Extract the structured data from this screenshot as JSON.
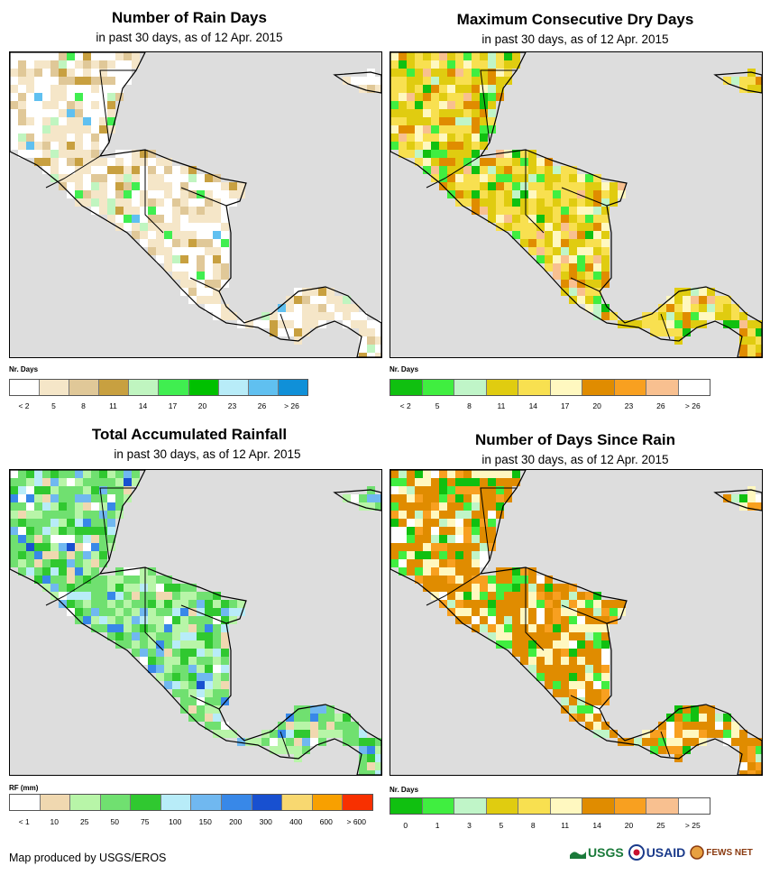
{
  "panels": [
    {
      "id": "rain-days",
      "title": "Number of Rain Days",
      "subtitle": "in past 30 days, as of 12 Apr. 2015",
      "map_theme": "rain-days",
      "legend": {
        "label": "Nr. Days",
        "colors": [
          "#ffffff",
          "#f5e6c8",
          "#e0c898",
          "#c8a040",
          "#c0f5c0",
          "#40ee50",
          "#00c000",
          "#b8ecf8",
          "#60c0f0",
          "#1090d8"
        ],
        "ticks": [
          "< 2",
          "5",
          "8",
          "11",
          "14",
          "17",
          "20",
          "23",
          "26",
          "> 26"
        ]
      }
    },
    {
      "id": "max-dry-days",
      "title": "Maximum Consecutive Dry Days",
      "subtitle": "in past 30 days, as of 12 Apr. 2015",
      "map_theme": "dry-days",
      "legend": {
        "label": "Nr. Days",
        "colors": [
          "#10c010",
          "#40ee40",
          "#c0f5c8",
          "#e0cc10",
          "#f8e050",
          "#fff8c0",
          "#e08c00",
          "#f8a020",
          "#f8c090",
          "#ffffff"
        ],
        "ticks": [
          "< 2",
          "5",
          "8",
          "11",
          "14",
          "17",
          "20",
          "23",
          "26",
          "> 26"
        ]
      }
    },
    {
      "id": "total-rainfall",
      "title": "Total Accumulated Rainfall",
      "subtitle": "in past 30 days, as of 12 Apr. 2015",
      "map_theme": "rainfall",
      "legend": {
        "label": "RF (mm)",
        "colors": [
          "#ffffff",
          "#f0d8b0",
          "#b8f5a8",
          "#70e070",
          "#30c830",
          "#b8ecf8",
          "#70b8f0",
          "#3888e8",
          "#1850d0",
          "#f8d870",
          "#f8a000",
          "#f83000"
        ],
        "ticks": [
          "< 1",
          "10",
          "25",
          "50",
          "75",
          "100",
          "150",
          "200",
          "300",
          "400",
          "600",
          "> 600"
        ]
      }
    },
    {
      "id": "days-since-rain",
      "title": "Number of Days Since Rain",
      "subtitle": "in past 30 days, as of 12 Apr. 2015",
      "map_theme": "since-rain",
      "legend": {
        "label": "Nr. Days",
        "colors": [
          "#10c010",
          "#40ee40",
          "#c0f5c8",
          "#e0cc10",
          "#f8e050",
          "#fff8c0",
          "#e08c00",
          "#f8a020",
          "#f8c090",
          "#ffffff"
        ],
        "ticks": [
          "0",
          "1",
          "3",
          "5",
          "8",
          "11",
          "14",
          "20",
          "25",
          "> 25"
        ]
      }
    }
  ],
  "footer": {
    "credit": "Map produced by USGS/EROS",
    "logos": [
      "USGS",
      "USAID",
      "FEWS NET"
    ]
  }
}
